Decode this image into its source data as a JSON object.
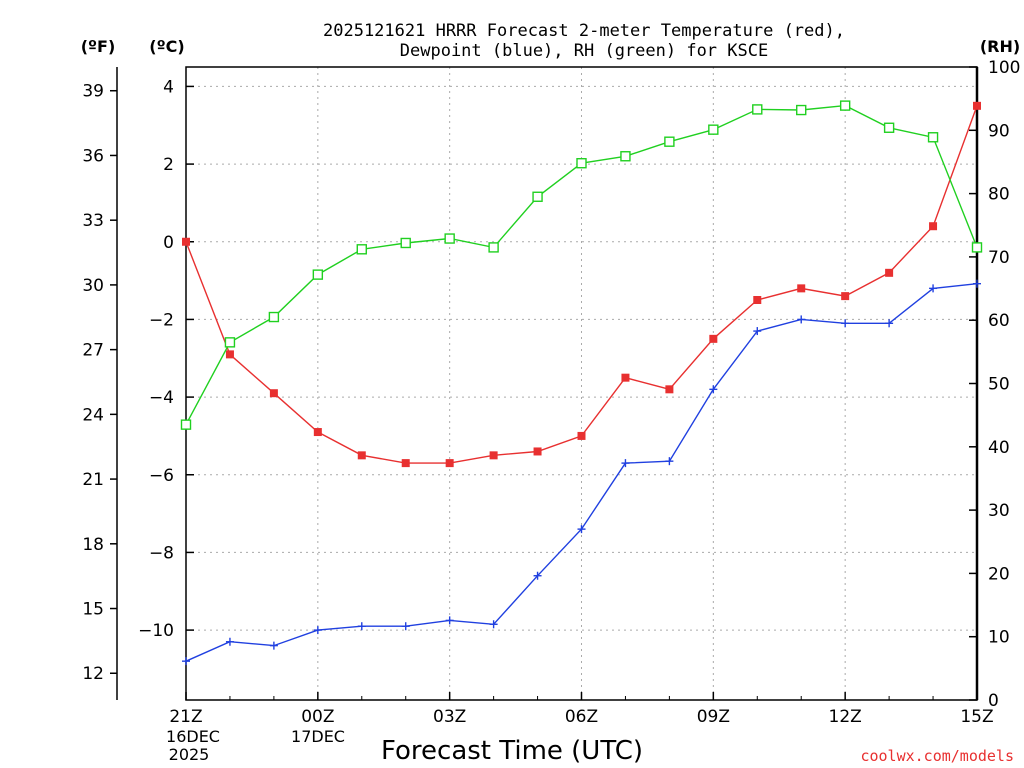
{
  "chart_data": {
    "type": "line",
    "title": [
      "2025121621 HRRR Forecast 2-meter Temperature (red),",
      "Dewpoint (blue), RH (green) for KSCE"
    ],
    "xlabel": "Forecast Time (UTC)",
    "credit": "coolwx.com/models",
    "units": {
      "fahrenheit": "(ºF)",
      "celsius": "(ºC)",
      "rh": "(RH)"
    },
    "x_ticks": [
      "21Z",
      "00Z",
      "03Z",
      "06Z",
      "09Z",
      "12Z",
      "15Z"
    ],
    "date_labels": [
      {
        "under": "21Z",
        "lines": [
          "16DEC",
          "2025"
        ]
      },
      {
        "under": "00Z",
        "lines": [
          "17DEC"
        ]
      }
    ],
    "hours": [
      0,
      1,
      2,
      3,
      4,
      5,
      6,
      7,
      8,
      9,
      10,
      11,
      12,
      13,
      14,
      15,
      16,
      17,
      18
    ],
    "y_celsius": {
      "range": [
        -11.8,
        4.5
      ],
      "ticks": [
        4,
        2,
        0,
        -2,
        -4,
        -6,
        -8,
        -10
      ]
    },
    "y_fahrenheit": {
      "ticks": [
        39,
        36,
        33,
        30,
        27,
        24,
        21,
        18,
        15,
        12
      ]
    },
    "y_rh": {
      "range": [
        0,
        100
      ],
      "ticks": [
        100,
        90,
        80,
        70,
        60,
        50,
        40,
        30,
        20,
        10,
        0
      ]
    },
    "series": [
      {
        "name": "2-meter Temperature",
        "axis": "celsius",
        "color": "#e83030",
        "marker": "filled-square",
        "values": [
          0.0,
          -2.9,
          -3.9,
          -4.9,
          -5.5,
          -5.7,
          -5.7,
          -5.5,
          -5.4,
          -5.0,
          -3.5,
          -3.8,
          -2.5,
          -1.5,
          -1.2,
          -1.4,
          -0.8,
          0.4,
          3.5
        ]
      },
      {
        "name": "Dewpoint",
        "axis": "celsius",
        "color": "#2040e0",
        "marker": "plus",
        "values": [
          -10.8,
          -10.3,
          -10.4,
          -10.0,
          -9.9,
          -9.9,
          -9.75,
          -9.85,
          -8.6,
          -7.4,
          -5.7,
          -5.65,
          -3.8,
          -2.3,
          -2.0,
          -2.1,
          -2.1,
          -1.2,
          -1.08
        ]
      },
      {
        "name": "RH",
        "axis": "rh",
        "color": "#20d020",
        "marker": "open-square",
        "values": [
          43.5,
          56.5,
          60.5,
          67.2,
          71.2,
          72.2,
          72.9,
          71.5,
          79.5,
          84.8,
          85.9,
          88.2,
          90.1,
          93.3,
          93.2,
          93.9,
          90.4,
          88.9,
          71.5
        ]
      }
    ]
  }
}
